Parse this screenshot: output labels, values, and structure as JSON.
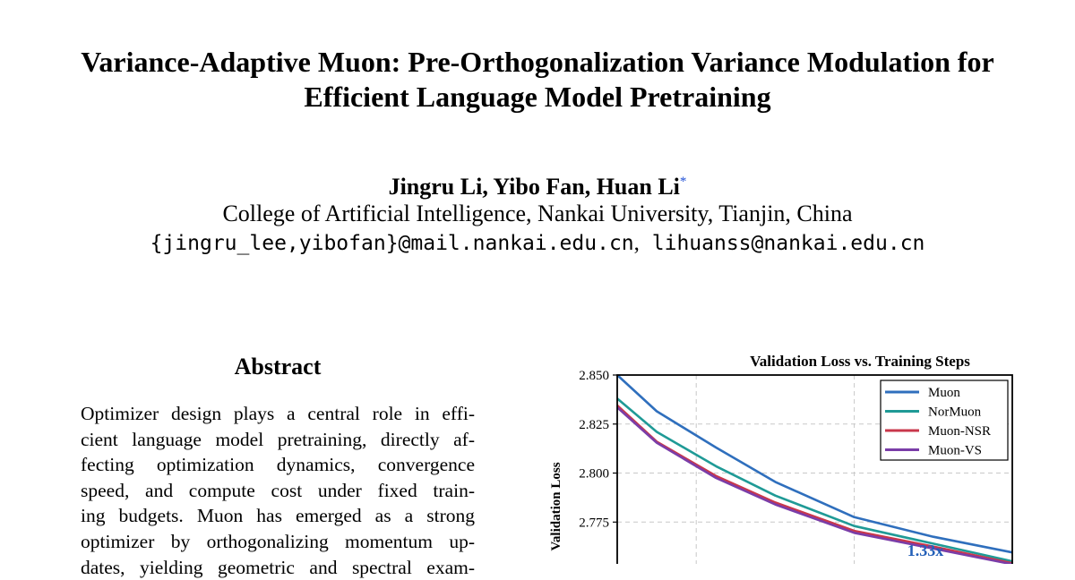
{
  "paper": {
    "title_line1": "Variance-Adaptive Muon: Pre-Orthogonalization Variance Modulation for",
    "title_line2": "Efficient Language Model Pretraining",
    "authors": "Jingru Li, Yibo Fan, Huan Li",
    "corresponding_mark": "*",
    "affiliation": "College of Artificial Intelligence, Nankai University, Tianjin, China",
    "email_group": "{jingru_lee,yibofan}@mail.nankai.edu.cn",
    "email_sep": ",",
    "email_single": "lihuanss@nankai.edu.cn"
  },
  "abstract": {
    "heading": "Abstract",
    "lines": [
      "Optimizer design plays a central role in effi-",
      "cient language model pretraining, directly af-",
      "fecting optimization dynamics, convergence",
      "speed, and compute cost under fixed train-",
      "ing budgets.  Muon has emerged as a strong",
      "optimizer by orthogonalizing momentum up-",
      "dates, yielding geometric and spectral exam-"
    ]
  },
  "chart_data": {
    "type": "line",
    "title": "Validation Loss vs. Training Steps",
    "ylabel": "Validation Loss",
    "xlabel": "",
    "y_ticks": [
      2.85,
      2.825,
      2.8,
      2.775
    ],
    "y_tick_labels": [
      "2.850",
      "2.825",
      "2.800",
      "2.775"
    ],
    "ylim": [
      2.745,
      2.85
    ],
    "grid": true,
    "legend_position": "top-right",
    "annotation": "1.33x",
    "colors": {
      "Muon": "#2f6fbd",
      "NorMuon": "#1f9a96",
      "Muon-NSR": "#c9374b",
      "Muon-VS": "#7a3da8",
      "annotation": "#2460b8",
      "grid": "#c8c8c8"
    },
    "series": [
      {
        "name": "Muon",
        "x": [
          0,
          0.1,
          0.25,
          0.4,
          0.6,
          0.8,
          1.0
        ],
        "y": [
          2.85,
          2.8315,
          2.813,
          2.7955,
          2.7775,
          2.7675,
          2.7595
        ]
      },
      {
        "name": "NorMuon",
        "x": [
          0,
          0.1,
          0.25,
          0.4,
          0.6,
          0.8,
          1.0
        ],
        "y": [
          2.838,
          2.821,
          2.8035,
          2.7885,
          2.773,
          2.764,
          2.755
        ]
      },
      {
        "name": "Muon-NSR",
        "x": [
          0,
          0.1,
          0.25,
          0.4,
          0.6,
          0.8,
          1.0
        ],
        "y": [
          2.8345,
          2.816,
          2.7985,
          2.785,
          2.7705,
          2.7625,
          2.754
        ]
      },
      {
        "name": "Muon-VS",
        "x": [
          0,
          0.1,
          0.25,
          0.4,
          0.6,
          0.8,
          1.0
        ],
        "y": [
          2.8335,
          2.8155,
          2.7975,
          2.784,
          2.7695,
          2.7615,
          2.7535
        ]
      }
    ]
  }
}
